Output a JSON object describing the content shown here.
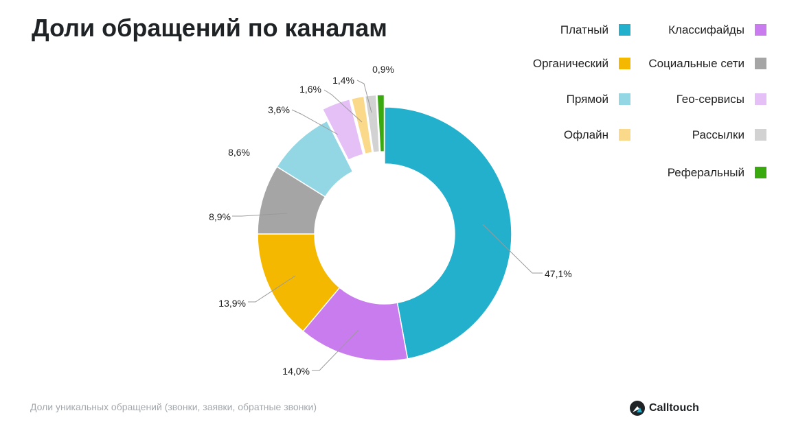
{
  "title": "Доли обращений по каналам",
  "footnote": "Доли уникальных обращений (звонки, заявки, обратные звонки)",
  "brand": {
    "name": "Calltouch",
    "icon": "calltouch-logo-icon"
  },
  "chart_data": {
    "type": "pie",
    "variant": "donut",
    "title": "Доли обращений по каналам",
    "legend_position": "top-right",
    "slices": [
      {
        "name": "Платный",
        "value": 47.1,
        "label": "47,1%",
        "color": "#23b0cc",
        "exploded": false
      },
      {
        "name": "Классифайды",
        "value": 14.0,
        "label": "14,0%",
        "color": "#c87cee",
        "exploded": false
      },
      {
        "name": "Органический",
        "value": 13.9,
        "label": "13,9%",
        "color": "#f5b800",
        "exploded": false
      },
      {
        "name": "Социальные сети",
        "value": 8.9,
        "label": "8,9%",
        "color": "#a5a5a5",
        "exploded": false
      },
      {
        "name": "Прямой",
        "value": 8.6,
        "label": "8,6%",
        "color": "#93d7e5",
        "exploded": false
      },
      {
        "name": "Гео-сервисы",
        "value": 3.6,
        "label": "3,6%",
        "color": "#e5c0f6",
        "exploded": true
      },
      {
        "name": "Офлайн",
        "value": 1.6,
        "label": "1,6%",
        "color": "#fad98a",
        "exploded": true
      },
      {
        "name": "Рассылки",
        "value": 1.4,
        "label": "1,4%",
        "color": "#d2d2d2",
        "exploded": true
      },
      {
        "name": "Реферальный",
        "value": 0.9,
        "label": "0,9%",
        "color": "#3aa80f",
        "exploded": true
      }
    ]
  }
}
